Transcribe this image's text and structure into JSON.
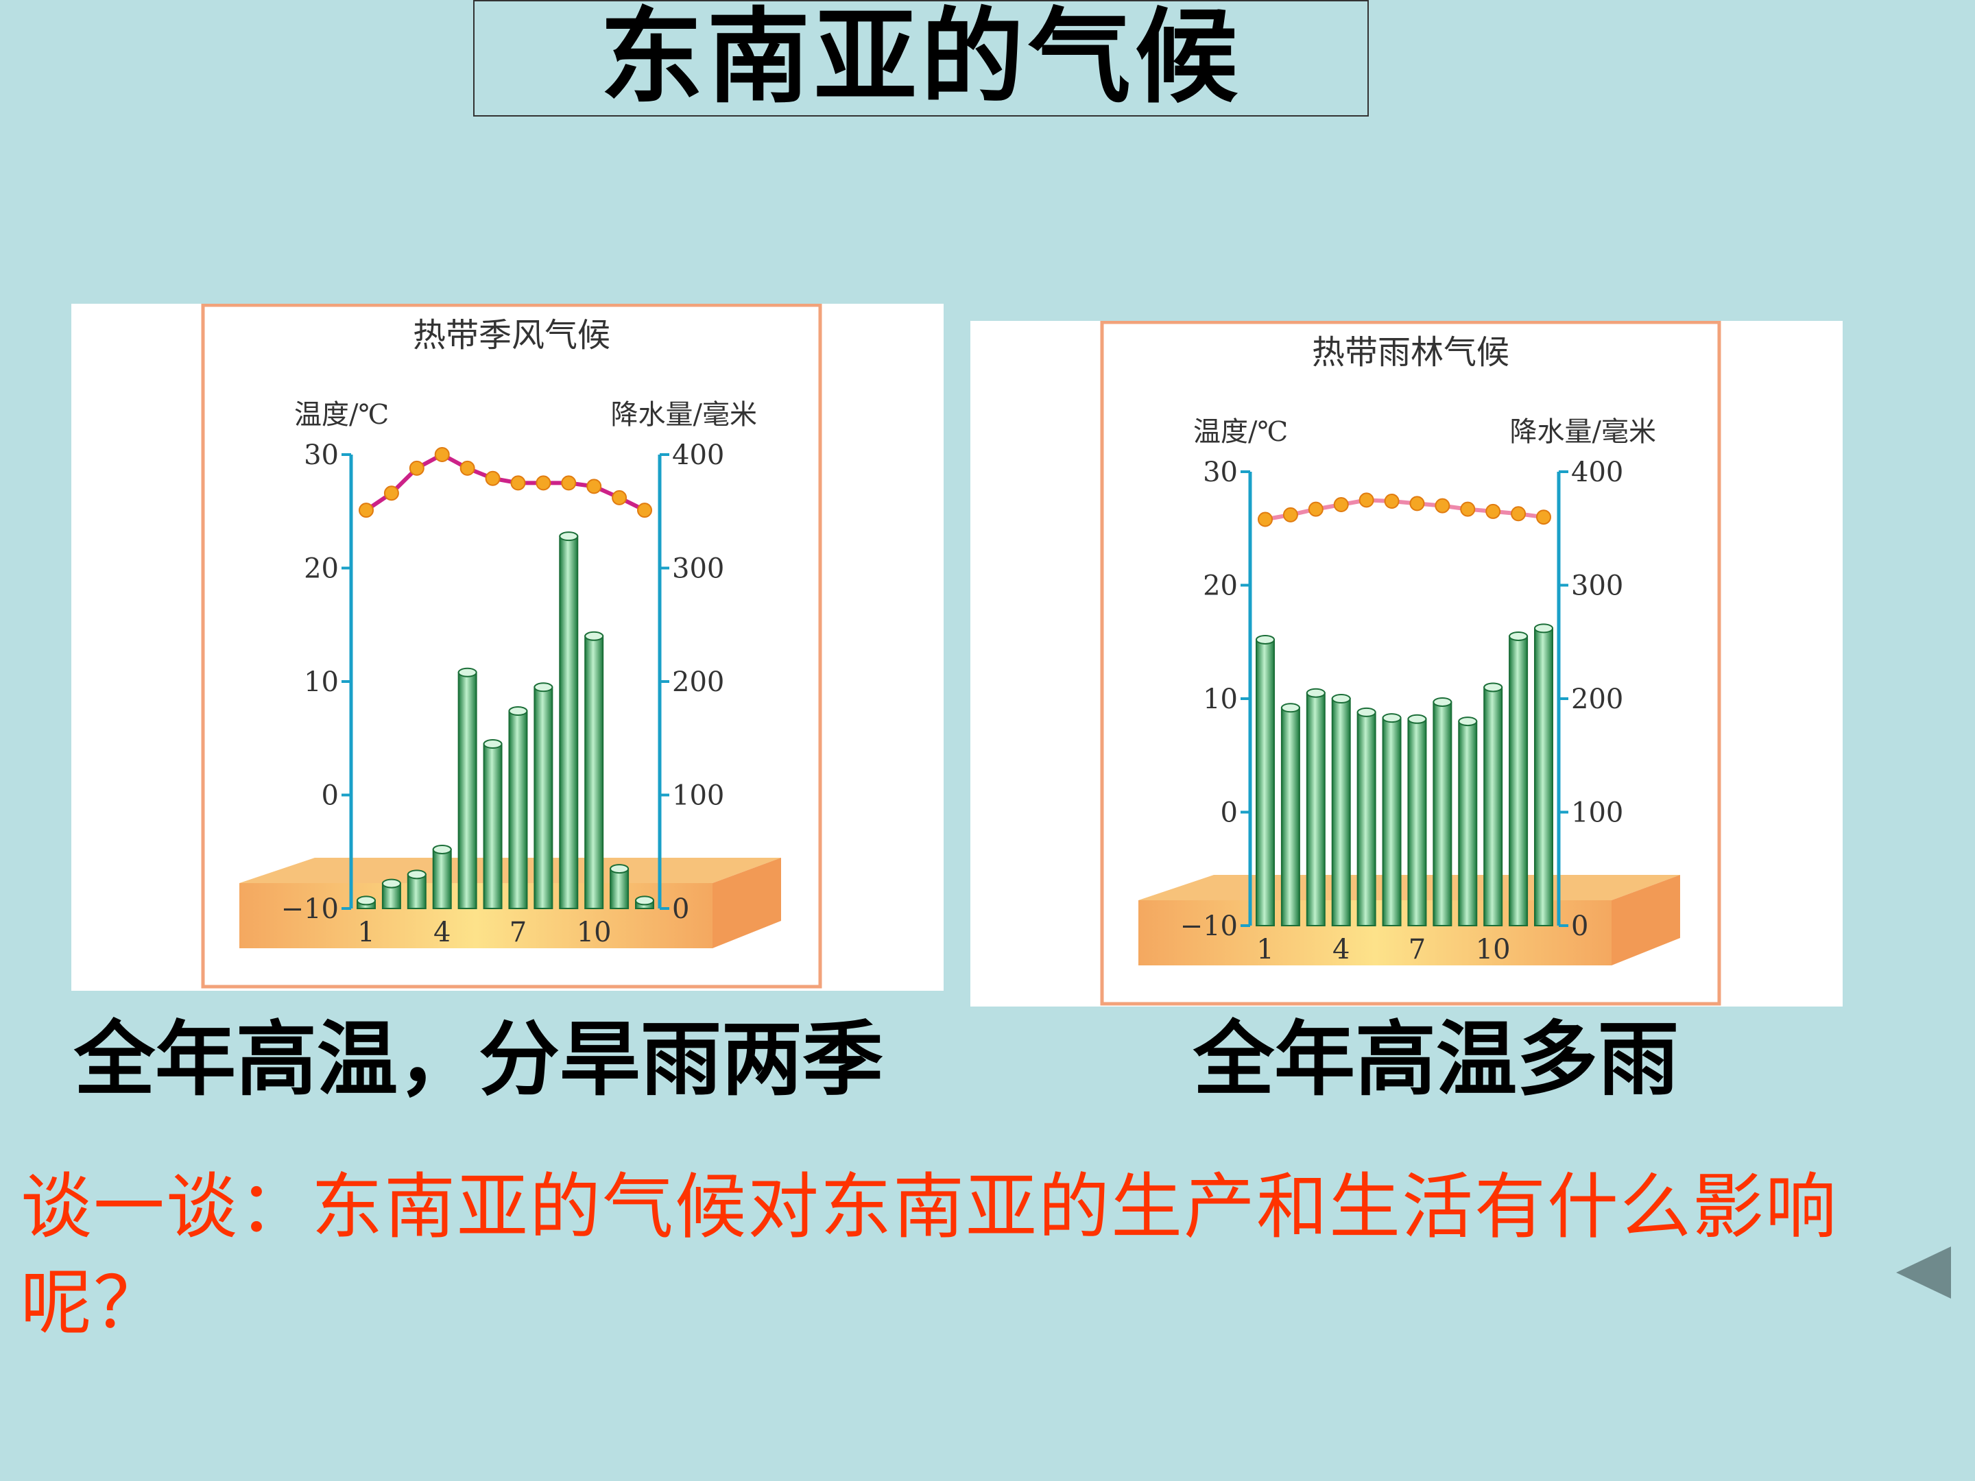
{
  "slide": {
    "title": "东南亚的气候",
    "caption_left": "全年高温，分旱雨两季",
    "caption_right": "全年高温多雨",
    "question": "谈一谈：东南亚的气候对东南亚的生产和生活有什么影响呢？"
  },
  "chart_data": [
    {
      "type": "bar",
      "title": "热带季风气候",
      "ylabel_left": "温度/℃",
      "ylabel_right": "降水量/毫米",
      "temp_ticks": [
        "30",
        "20",
        "10",
        "0",
        "−10"
      ],
      "precip_ticks": [
        "400",
        "300",
        "200",
        "100",
        "0"
      ],
      "x_ticks": [
        "1",
        "4",
        "7",
        "10"
      ],
      "temp_ylim": [
        -10,
        30
      ],
      "precip_ylim": [
        0,
        400
      ],
      "months": [
        1,
        2,
        3,
        4,
        5,
        6,
        7,
        8,
        9,
        10,
        11,
        12
      ],
      "series": [
        {
          "type": "line",
          "axis": "temp",
          "values": [
            25.1,
            26.6,
            28.8,
            30.0,
            28.8,
            27.9,
            27.5,
            27.5,
            27.5,
            27.2,
            26.2,
            25.1
          ]
        },
        {
          "type": "bar",
          "axis": "precip",
          "values": [
            7,
            22,
            30,
            52,
            208,
            145,
            174,
            195,
            328,
            240,
            35,
            7
          ]
        }
      ],
      "colors": {
        "line": "#cc2288",
        "marker": "#f5a623",
        "bar": "#2fa35a",
        "axis": "#1aa0c8"
      }
    },
    {
      "type": "bar",
      "title": "热带雨林气候",
      "ylabel_left": "温度/℃",
      "ylabel_right": "降水量/毫米",
      "temp_ticks": [
        "30",
        "20",
        "10",
        "0",
        "−10"
      ],
      "precip_ticks": [
        "400",
        "300",
        "200",
        "100",
        "0"
      ],
      "x_ticks": [
        "1",
        "4",
        "7",
        "10"
      ],
      "temp_ylim": [
        -10,
        30
      ],
      "precip_ylim": [
        0,
        400
      ],
      "months": [
        1,
        2,
        3,
        4,
        5,
        6,
        7,
        8,
        9,
        10,
        11,
        12
      ],
      "series": [
        {
          "type": "line",
          "axis": "temp",
          "values": [
            25.8,
            26.2,
            26.7,
            27.1,
            27.5,
            27.4,
            27.2,
            27.0,
            26.7,
            26.5,
            26.3,
            26.0
          ]
        },
        {
          "type": "bar",
          "axis": "precip",
          "values": [
            252,
            192,
            205,
            200,
            188,
            183,
            182,
            197,
            180,
            210,
            255,
            262
          ]
        }
      ],
      "colors": {
        "line": "#ee88aa",
        "marker": "#f5a623",
        "bar": "#2fa35a",
        "axis": "#1aa0c8"
      }
    }
  ]
}
